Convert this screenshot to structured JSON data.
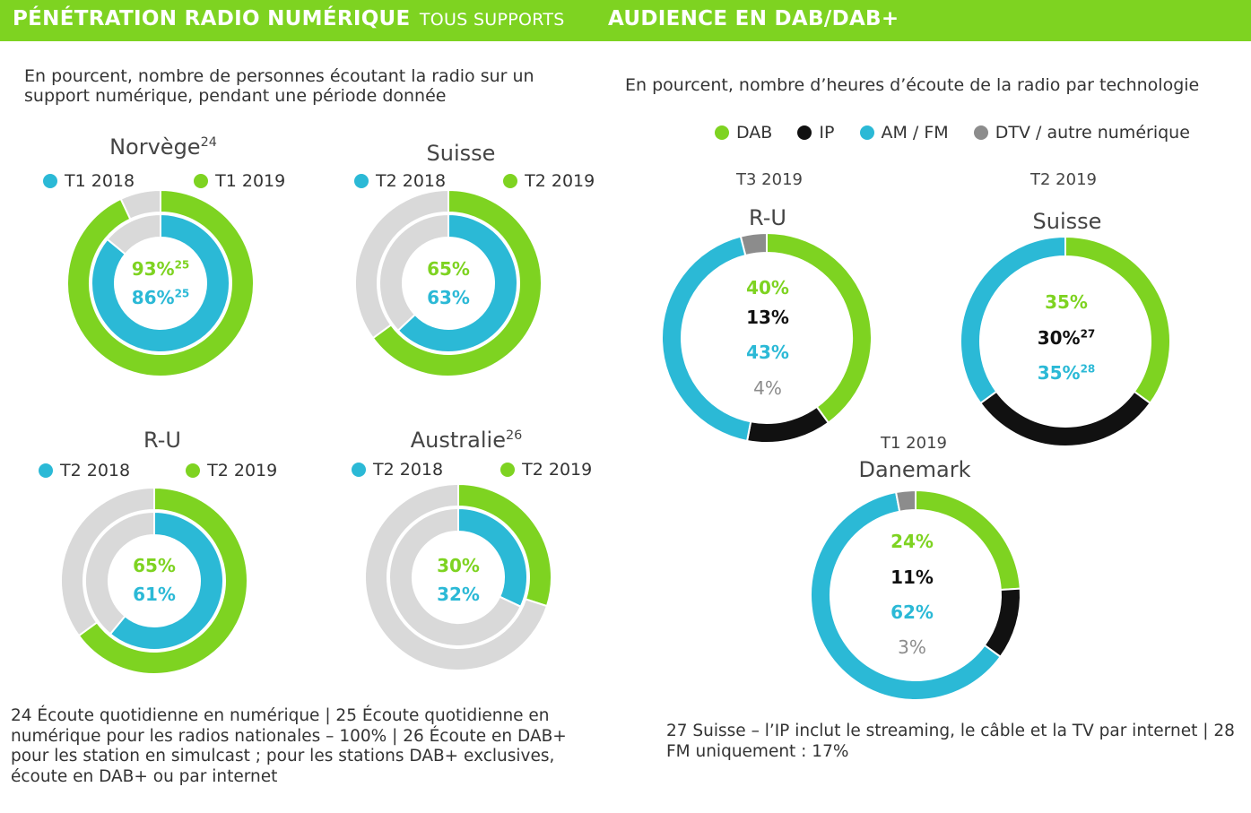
{
  "colors": {
    "green": "#7ed321",
    "blue": "#2bb9d6",
    "grey": "#d9d9d9",
    "black": "#111111",
    "dtv": "#8c8c8c",
    "header": "#7ed321"
  },
  "header": {
    "left_title": "PÉNÉTRATION RADIO NUMÉRIQUE",
    "left_subtitle": "TOUS SUPPORTS",
    "right_title": "AUDIENCE EN DAB/DAB+"
  },
  "left": {
    "description": "En pourcent, nombre de personnes écoutant la radio sur un support numérique, pendant une période donnée"
  },
  "right": {
    "description": "En pourcent, nombre d’heures d’écoute de la radio par technologie",
    "legend": [
      "DAB",
      "IP",
      "AM / FM",
      "DTV / autre numérique"
    ]
  },
  "chart_data": [
    {
      "type": "pie",
      "variant": "nested-donut",
      "title": "Norvège",
      "title_sup": "24",
      "series": [
        {
          "name": "T1 2018",
          "values": [
            86
          ]
        },
        {
          "name": "T1 2019",
          "values": [
            93
          ]
        }
      ],
      "labels": {
        "outer": "93%",
        "outer_sup": "25",
        "inner": "86%",
        "inner_sup": "25"
      }
    },
    {
      "type": "pie",
      "variant": "nested-donut",
      "title": "Suisse",
      "title_sup": "",
      "series": [
        {
          "name": "T2 2018",
          "values": [
            63
          ]
        },
        {
          "name": "T2 2019",
          "values": [
            65
          ]
        }
      ],
      "labels": {
        "outer": "65%",
        "outer_sup": "",
        "inner": "63%",
        "inner_sup": ""
      }
    },
    {
      "type": "pie",
      "variant": "nested-donut",
      "title": "R-U",
      "title_sup": "",
      "series": [
        {
          "name": "T2 2018",
          "values": [
            61
          ]
        },
        {
          "name": "T2 2019",
          "values": [
            65
          ]
        }
      ],
      "labels": {
        "outer": "65%",
        "outer_sup": "",
        "inner": "61%",
        "inner_sup": ""
      }
    },
    {
      "type": "pie",
      "variant": "nested-donut",
      "title": "Australie",
      "title_sup": "26",
      "series": [
        {
          "name": "T2 2018",
          "values": [
            32
          ]
        },
        {
          "name": "T2 2019",
          "values": [
            30
          ]
        }
      ],
      "labels": {
        "outer": "30%",
        "outer_sup": "",
        "inner": "32%",
        "inner_sup": ""
      }
    },
    {
      "type": "pie",
      "variant": "donut",
      "title": "R-U",
      "period": "T3 2019",
      "categories": [
        "DAB",
        "IP",
        "AM / FM",
        "DTV / autre numérique"
      ],
      "values": [
        40,
        13,
        43,
        4
      ],
      "labels": [
        "40%",
        "13%",
        "43%",
        "4%"
      ],
      "label_sups": [
        "",
        "",
        "",
        ""
      ]
    },
    {
      "type": "pie",
      "variant": "donut",
      "title": "Suisse",
      "period": "T2 2019",
      "categories": [
        "DAB",
        "IP",
        "AM / FM"
      ],
      "values": [
        35,
        30,
        35
      ],
      "labels": [
        "35%",
        "30%",
        "35%"
      ],
      "label_sups": [
        "",
        "27",
        "28"
      ]
    },
    {
      "type": "pie",
      "variant": "donut",
      "title": "Danemark",
      "period": "T1 2019",
      "categories": [
        "DAB",
        "IP",
        "AM / FM",
        "DTV / autre numérique"
      ],
      "values": [
        24,
        11,
        62,
        3
      ],
      "labels": [
        "24%",
        "11%",
        "62%",
        "3%"
      ],
      "label_sups": [
        "",
        "",
        "",
        ""
      ]
    }
  ],
  "footnotes": {
    "left": "24 Écoute quotidienne en numérique | 25 Écoute quotidienne en numérique pour les radios nationales – 100% | 26 Écoute en DAB+ pour les station en simulcast ; pour les stations DAB+ exclusives, écoute en DAB+ ou par internet",
    "right": "27 Suisse – l’IP inclut le streaming, le câble et la TV par internet | 28 FM uniquement : 17%"
  }
}
